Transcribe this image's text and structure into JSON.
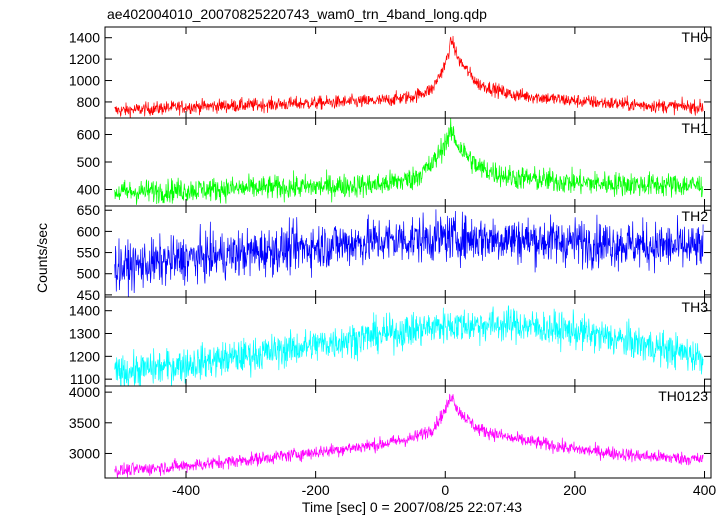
{
  "title": "ae402004010_20070825220743_wam0_trn_4band_long.qdp",
  "xlabel": "Time [sec] 0 = 2007/08/25 22:07:43",
  "ylabel": "Counts/sec",
  "chart_data": [
    {
      "type": "line",
      "name": "TH0",
      "color": "#ff0000",
      "xlim": [
        -525,
        410
      ],
      "ylim": [
        650,
        1500
      ],
      "yticks": [
        800,
        1000,
        1200,
        1400
      ],
      "x": [
        -500,
        -400,
        -300,
        -200,
        -100,
        -50,
        -20,
        0,
        10,
        20,
        50,
        100,
        200,
        300,
        400
      ],
      "y": [
        720,
        755,
        770,
        790,
        810,
        850,
        920,
        1150,
        1380,
        1200,
        970,
        870,
        810,
        770,
        750
      ],
      "noise": 32
    },
    {
      "type": "line",
      "name": "TH1",
      "color": "#00ff00",
      "xlim": [
        -525,
        410
      ],
      "ylim": [
        340,
        660
      ],
      "yticks": [
        400,
        500,
        600
      ],
      "x": [
        -500,
        -400,
        -300,
        -200,
        -100,
        -50,
        -20,
        0,
        10,
        20,
        50,
        100,
        200,
        300,
        400
      ],
      "y": [
        390,
        398,
        405,
        410,
        418,
        440,
        490,
        570,
        610,
        560,
        480,
        445,
        425,
        418,
        415
      ],
      "noise": 22
    },
    {
      "type": "line",
      "name": "TH2",
      "color": "#0000ff",
      "xlim": [
        -525,
        410
      ],
      "ylim": [
        445,
        660
      ],
      "yticks": [
        450,
        500,
        550,
        600,
        650
      ],
      "x": [
        -500,
        -400,
        -300,
        -200,
        -100,
        0,
        100,
        200,
        300,
        400
      ],
      "y": [
        515,
        535,
        550,
        565,
        578,
        585,
        582,
        575,
        568,
        560
      ],
      "noise": 28
    },
    {
      "type": "line",
      "name": "TH3",
      "color": "#00ffff",
      "xlim": [
        -525,
        410
      ],
      "ylim": [
        1070,
        1460
      ],
      "yticks": [
        1100,
        1200,
        1300,
        1400
      ],
      "x": [
        -500,
        -400,
        -300,
        -200,
        -100,
        0,
        100,
        200,
        300,
        400
      ],
      "y": [
        1130,
        1165,
        1205,
        1250,
        1295,
        1335,
        1340,
        1310,
        1255,
        1195
      ],
      "noise": 38
    },
    {
      "type": "line",
      "name": "TH0123",
      "color": "#ff00ff",
      "xlim": [
        -525,
        410
      ],
      "ylim": [
        2600,
        4100
      ],
      "yticks": [
        3000,
        3500,
        4000
      ],
      "x": [
        -500,
        -400,
        -300,
        -200,
        -100,
        -50,
        -20,
        0,
        10,
        20,
        50,
        100,
        200,
        300,
        400
      ],
      "y": [
        2720,
        2800,
        2900,
        3020,
        3150,
        3250,
        3400,
        3700,
        3960,
        3700,
        3400,
        3250,
        3070,
        2960,
        2900
      ],
      "noise": 55
    }
  ],
  "xticks": [
    -400,
    -200,
    0,
    200,
    400
  ]
}
